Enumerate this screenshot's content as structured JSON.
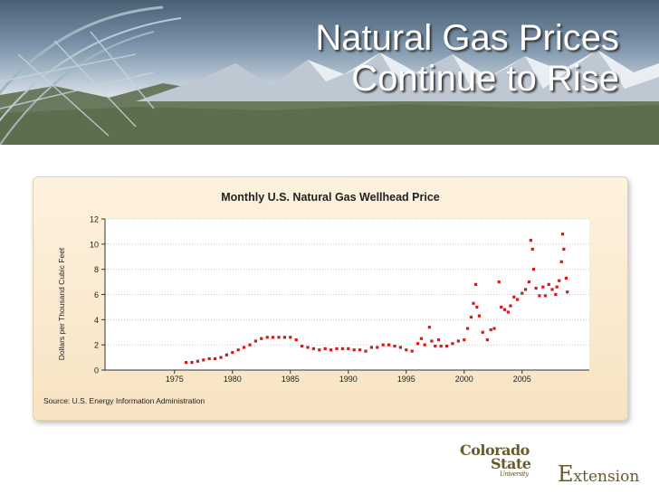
{
  "slide": {
    "title": "Natural Gas Prices\nContinue to Rise"
  },
  "logos": {
    "csu_line1": "Colorado",
    "csu_line2": "State",
    "csu_line3": "University",
    "extension_cap": "E",
    "extension_rest": "xtension"
  },
  "chart_data": {
    "type": "scatter",
    "title": "Monthly U.S. Natural Gas Wellhead Price",
    "ylabel": "Dollars per Thousand Cubic Feet",
    "xlabel": "",
    "source": "Source: U.S. Energy Information Administration",
    "xlim": [
      1969,
      2010.8
    ],
    "ylim": [
      0,
      12
    ],
    "xticks": [
      "1975",
      "1980",
      "1985",
      "1990",
      "1995",
      "2000",
      "2005"
    ],
    "yticks": [
      "0",
      "2",
      "4",
      "6",
      "8",
      "10",
      "12"
    ],
    "grid": "horizontal-dotted",
    "marker_color": "#d21a1a",
    "series": [
      {
        "x": [
          1976.0,
          1976.5,
          1977.0,
          1977.5,
          1978.0,
          1978.5,
          1979.0,
          1979.5,
          1980.0,
          1980.5,
          1981.0,
          1981.5,
          1982.0,
          1982.5,
          1983.0,
          1983.5,
          1984.0,
          1984.5,
          1985.0,
          1985.5,
          1986.0,
          1986.5,
          1987.0,
          1987.5,
          1988.0,
          1988.5,
          1989.0,
          1989.5,
          1990.0,
          1990.5,
          1991.0,
          1991.5,
          1992.0,
          1992.5,
          1993.0,
          1993.5,
          1994.0,
          1994.5,
          1995.0,
          1995.5,
          1996.0,
          1996.3,
          1996.6,
          1997.0,
          1997.2,
          1997.5,
          1997.8,
          1998.0,
          1998.5,
          1999.0,
          1999.5,
          2000.0,
          2000.3,
          2000.6,
          2000.8,
          2001.0,
          2001.1,
          2001.3,
          2001.6,
          2002.0,
          2002.3,
          2002.6,
          2003.0,
          2003.2,
          2003.5,
          2003.8,
          2004.0,
          2004.3,
          2004.6,
          2005.0,
          2005.3,
          2005.6,
          2005.75,
          2005.9,
          2006.0,
          2006.2,
          2006.5,
          2006.8,
          2007.0,
          2007.3,
          2007.6,
          2007.9,
          2008.0,
          2008.2,
          2008.4,
          2008.5,
          2008.6,
          2008.8,
          2008.9
        ],
        "y": [
          0.6,
          0.6,
          0.7,
          0.8,
          0.9,
          0.9,
          1.0,
          1.2,
          1.4,
          1.6,
          1.8,
          2.0,
          2.3,
          2.5,
          2.6,
          2.6,
          2.6,
          2.6,
          2.6,
          2.4,
          1.9,
          1.8,
          1.7,
          1.6,
          1.7,
          1.6,
          1.7,
          1.7,
          1.7,
          1.6,
          1.6,
          1.5,
          1.8,
          1.8,
          2.0,
          2.0,
          1.9,
          1.8,
          1.6,
          1.5,
          2.1,
          2.5,
          2.0,
          3.4,
          2.3,
          1.9,
          2.4,
          1.9,
          1.9,
          2.1,
          2.3,
          2.4,
          3.3,
          4.2,
          5.3,
          6.8,
          5.0,
          4.3,
          3.0,
          2.4,
          3.2,
          3.3,
          7.0,
          5.0,
          4.8,
          4.6,
          5.1,
          5.8,
          5.6,
          6.1,
          6.4,
          7.0,
          10.3,
          9.6,
          8.0,
          6.5,
          5.9,
          6.6,
          5.9,
          6.8,
          6.4,
          6.0,
          6.6,
          7.1,
          8.6,
          10.8,
          9.6,
          7.3,
          6.2
        ]
      }
    ]
  }
}
